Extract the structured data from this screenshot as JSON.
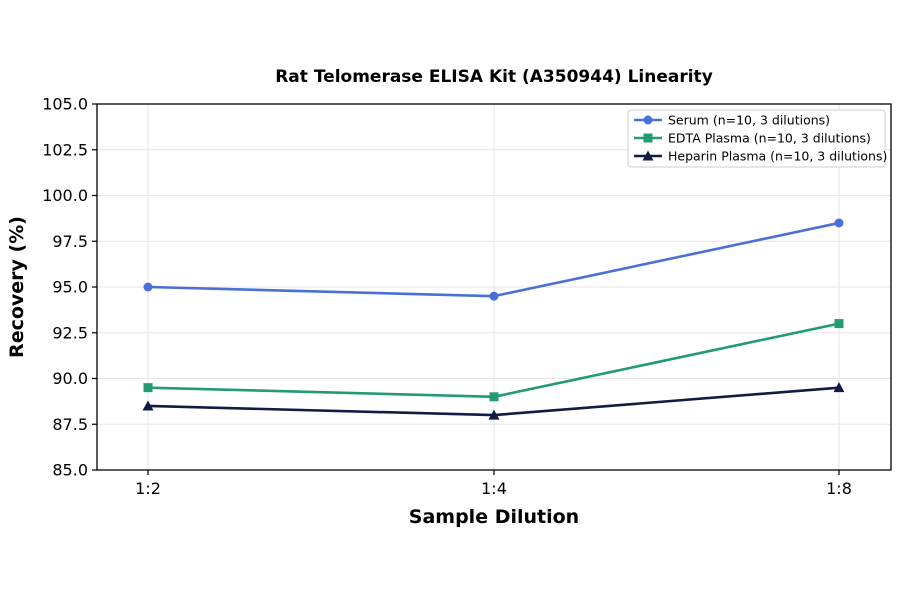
{
  "chart_data": {
    "type": "line",
    "title": "Rat Telomerase ELISA Kit (A350944) Linearity",
    "xlabel": "Sample Dilution",
    "ylabel": "Recovery (%)",
    "categories": [
      "1:2",
      "1:4",
      "1:8"
    ],
    "ylim": [
      85.0,
      105.0
    ],
    "yticks": [
      "85.0",
      "87.5",
      "90.0",
      "92.5",
      "95.0",
      "97.5",
      "100.0",
      "102.5",
      "105.0"
    ],
    "grid": true,
    "legend_position": "top-right",
    "series": [
      {
        "name": "Serum (n=10, 3 dilutions)",
        "values": [
          95.0,
          94.5,
          98.5
        ],
        "color": "#4a6fd6",
        "marker": "circle"
      },
      {
        "name": "EDTA Plasma (n=10, 3 dilutions)",
        "values": [
          89.5,
          89.0,
          93.0
        ],
        "color": "#229a72",
        "marker": "square"
      },
      {
        "name": "Heparin Plasma (n=10, 3 dilutions)",
        "values": [
          88.5,
          88.0,
          89.5
        ],
        "color": "#111b44",
        "marker": "triangle"
      }
    ]
  }
}
